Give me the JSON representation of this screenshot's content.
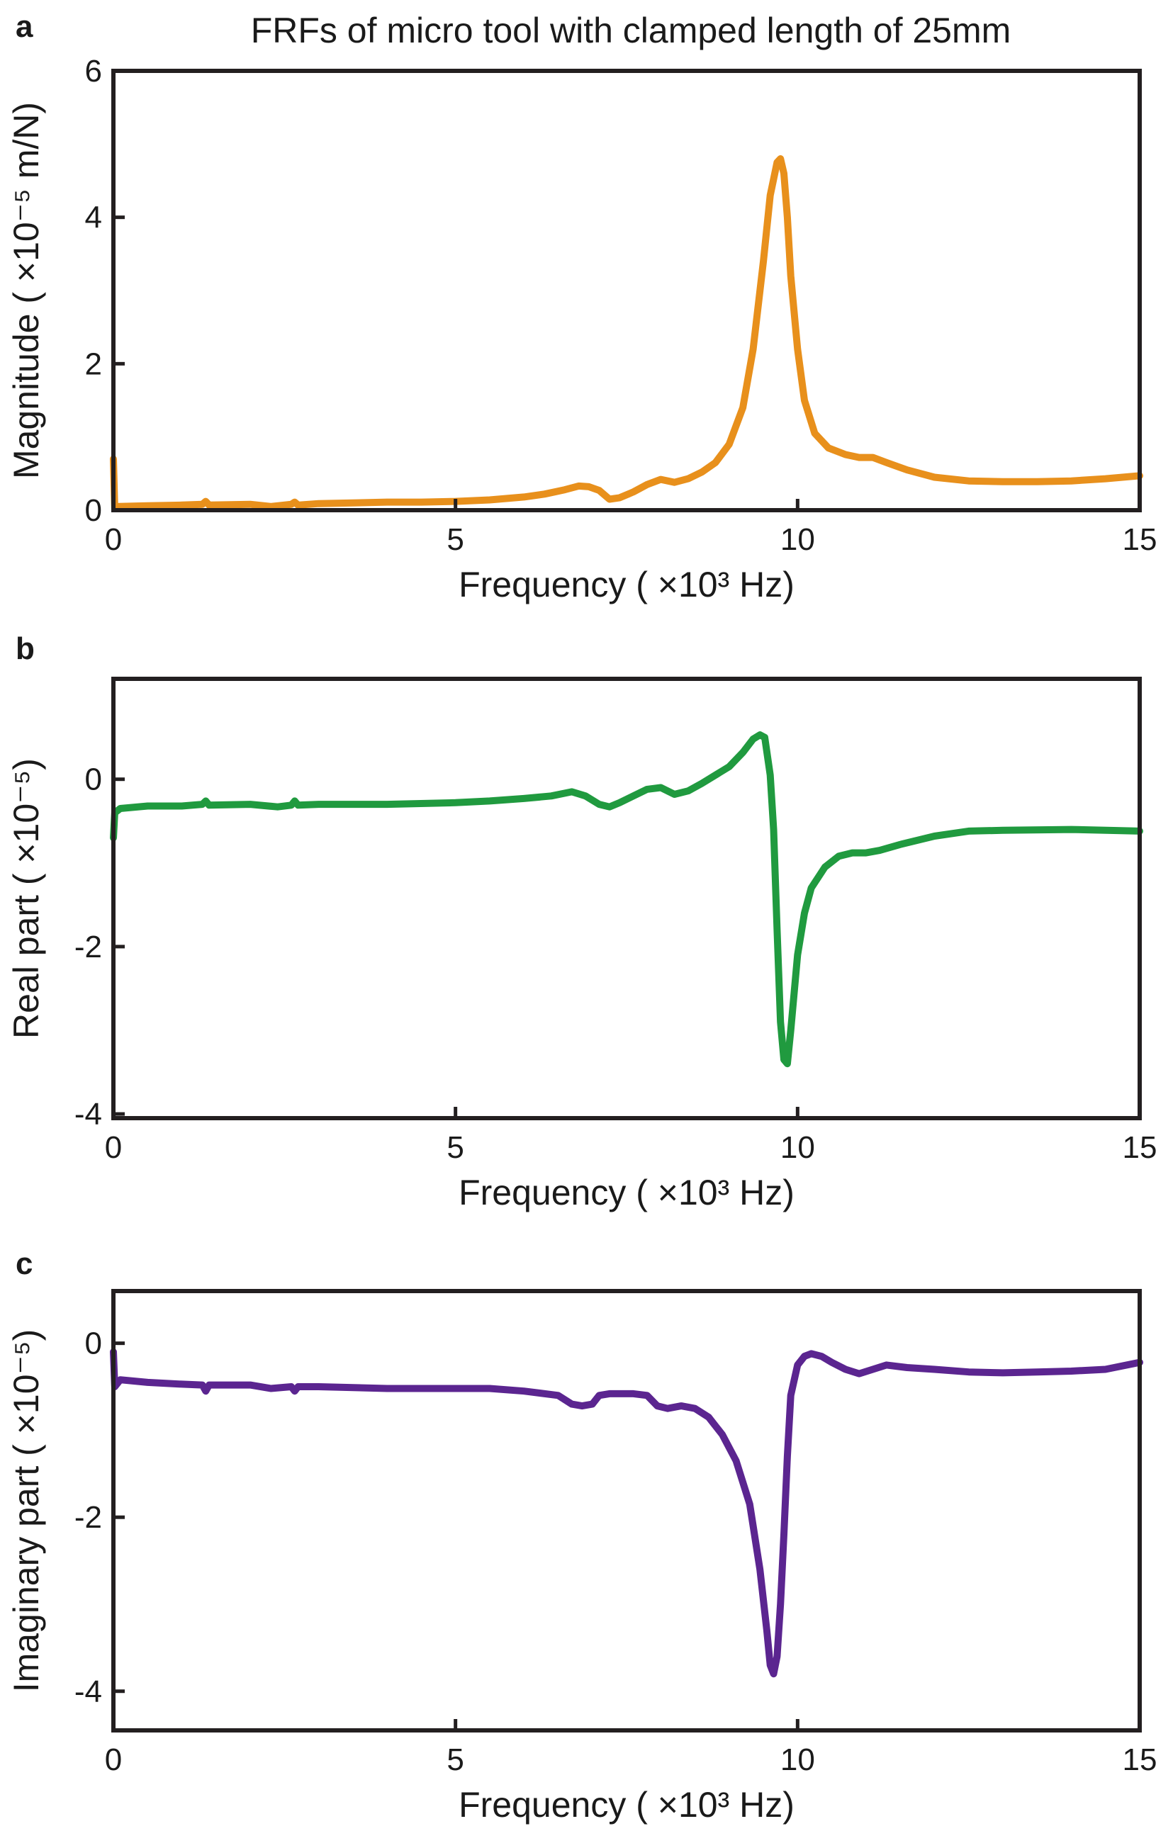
{
  "title": "FRFs of  micro tool with clamped length of 25mm",
  "chart_data": [
    {
      "type": "line",
      "panel": "a",
      "xlabel": "Frequency ( ×10³ Hz)",
      "ylabel": "Magnitude ( ×10⁻⁵ m/N)",
      "xlim": [
        0,
        15
      ],
      "ylim": [
        0,
        6
      ],
      "xticks": [
        "0",
        "5",
        "10",
        "15"
      ],
      "yticks": [
        "0",
        "2",
        "4",
        "6"
      ],
      "color": "#e8901c",
      "series": [
        {
          "x": [
            0,
            0.02,
            0.08,
            0.5,
            1.0,
            1.3,
            1.35,
            1.4,
            2.0,
            2.3,
            2.6,
            2.65,
            2.7,
            3.0,
            3.5,
            4.0,
            4.5,
            5.0,
            5.5,
            6.0,
            6.3,
            6.6,
            6.8,
            6.95,
            7.1,
            7.25,
            7.4,
            7.6,
            7.8,
            8.0,
            8.2,
            8.4,
            8.6,
            8.8,
            9.0,
            9.2,
            9.35,
            9.5,
            9.6,
            9.7,
            9.75,
            9.8,
            9.85,
            9.9,
            10.0,
            10.1,
            10.25,
            10.45,
            10.7,
            10.9,
            11.1,
            11.3,
            11.6,
            12.0,
            12.5,
            13.0,
            13.5,
            14.0,
            14.5,
            15.0
          ],
          "y": [
            0.7,
            0.02,
            0.05,
            0.06,
            0.07,
            0.08,
            0.12,
            0.07,
            0.08,
            0.05,
            0.08,
            0.11,
            0.07,
            0.09,
            0.1,
            0.11,
            0.11,
            0.12,
            0.14,
            0.18,
            0.22,
            0.28,
            0.33,
            0.32,
            0.27,
            0.15,
            0.17,
            0.25,
            0.35,
            0.42,
            0.38,
            0.43,
            0.52,
            0.65,
            0.9,
            1.4,
            2.2,
            3.4,
            4.3,
            4.75,
            4.8,
            4.6,
            4.0,
            3.2,
            2.2,
            1.5,
            1.05,
            0.85,
            0.76,
            0.72,
            0.72,
            0.65,
            0.55,
            0.45,
            0.4,
            0.39,
            0.39,
            0.4,
            0.43,
            0.47
          ]
        }
      ]
    },
    {
      "type": "line",
      "panel": "b",
      "xlabel": "Frequency ( ×10³ Hz)",
      "ylabel": "Real part ( ×10⁻⁵)",
      "xlim": [
        0,
        15
      ],
      "ylim": [
        -4.05,
        1.2
      ],
      "xticks": [
        "0",
        "5",
        "10",
        "15"
      ],
      "yticks": [
        "0",
        "-2",
        "-4"
      ],
      "color": "#209a3f",
      "series": [
        {
          "x": [
            0,
            0.02,
            0.1,
            0.5,
            1.0,
            1.3,
            1.35,
            1.4,
            2.0,
            2.4,
            2.6,
            2.65,
            2.7,
            3.0,
            4.0,
            5.0,
            5.5,
            6.0,
            6.4,
            6.7,
            6.9,
            7.1,
            7.25,
            7.4,
            7.6,
            7.8,
            8.0,
            8.2,
            8.4,
            8.6,
            8.8,
            9.0,
            9.2,
            9.35,
            9.45,
            9.52,
            9.6,
            9.65,
            9.7,
            9.75,
            9.8,
            9.85,
            9.9,
            10.0,
            10.1,
            10.2,
            10.4,
            10.6,
            10.8,
            11.0,
            11.2,
            11.5,
            12.0,
            12.5,
            13.0,
            14.0,
            15.0
          ],
          "y": [
            -0.7,
            -0.4,
            -0.35,
            -0.32,
            -0.32,
            -0.3,
            -0.26,
            -0.31,
            -0.3,
            -0.33,
            -0.31,
            -0.26,
            -0.31,
            -0.3,
            -0.3,
            -0.28,
            -0.26,
            -0.23,
            -0.2,
            -0.15,
            -0.2,
            -0.3,
            -0.33,
            -0.28,
            -0.2,
            -0.12,
            -0.1,
            -0.18,
            -0.14,
            -0.05,
            0.05,
            0.15,
            0.32,
            0.48,
            0.53,
            0.5,
            0.05,
            -0.6,
            -1.8,
            -2.9,
            -3.35,
            -3.4,
            -3.0,
            -2.1,
            -1.6,
            -1.3,
            -1.05,
            -0.92,
            -0.88,
            -0.88,
            -0.85,
            -0.78,
            -0.68,
            -0.62,
            -0.61,
            -0.6,
            -0.62
          ]
        }
      ]
    },
    {
      "type": "line",
      "panel": "c",
      "xlabel": "Frequency ( ×10³ Hz)",
      "ylabel": "Imaginary part ( ×10⁻⁵)",
      "xlim": [
        0,
        15
      ],
      "ylim": [
        -4.45,
        0.6
      ],
      "xticks": [
        "0",
        "5",
        "10",
        "15"
      ],
      "yticks": [
        "0",
        "-2",
        "-4"
      ],
      "color": "#5b2590",
      "series": [
        {
          "x": [
            0,
            0.02,
            0.1,
            0.5,
            1.0,
            1.3,
            1.35,
            1.4,
            2.0,
            2.3,
            2.6,
            2.65,
            2.7,
            3.0,
            4.0,
            5.0,
            5.5,
            6.0,
            6.5,
            6.7,
            6.85,
            7.0,
            7.1,
            7.25,
            7.4,
            7.6,
            7.8,
            7.95,
            8.1,
            8.3,
            8.5,
            8.7,
            8.9,
            9.1,
            9.3,
            9.45,
            9.55,
            9.6,
            9.65,
            9.7,
            9.75,
            9.8,
            9.85,
            9.9,
            10.0,
            10.1,
            10.2,
            10.35,
            10.5,
            10.7,
            10.9,
            11.1,
            11.3,
            11.6,
            12.0,
            12.5,
            13.0,
            13.5,
            14.0,
            14.5,
            15.0
          ],
          "y": [
            -0.1,
            -0.5,
            -0.42,
            -0.45,
            -0.47,
            -0.48,
            -0.55,
            -0.48,
            -0.48,
            -0.52,
            -0.5,
            -0.55,
            -0.5,
            -0.5,
            -0.52,
            -0.52,
            -0.52,
            -0.55,
            -0.6,
            -0.7,
            -0.72,
            -0.7,
            -0.6,
            -0.58,
            -0.58,
            -0.58,
            -0.6,
            -0.72,
            -0.75,
            -0.72,
            -0.75,
            -0.85,
            -1.05,
            -1.35,
            -1.85,
            -2.6,
            -3.3,
            -3.7,
            -3.8,
            -3.6,
            -3.0,
            -2.2,
            -1.3,
            -0.6,
            -0.25,
            -0.15,
            -0.12,
            -0.15,
            -0.22,
            -0.3,
            -0.35,
            -0.3,
            -0.25,
            -0.28,
            -0.3,
            -0.33,
            -0.34,
            -0.33,
            -0.32,
            -0.3,
            -0.22
          ]
        }
      ]
    }
  ]
}
